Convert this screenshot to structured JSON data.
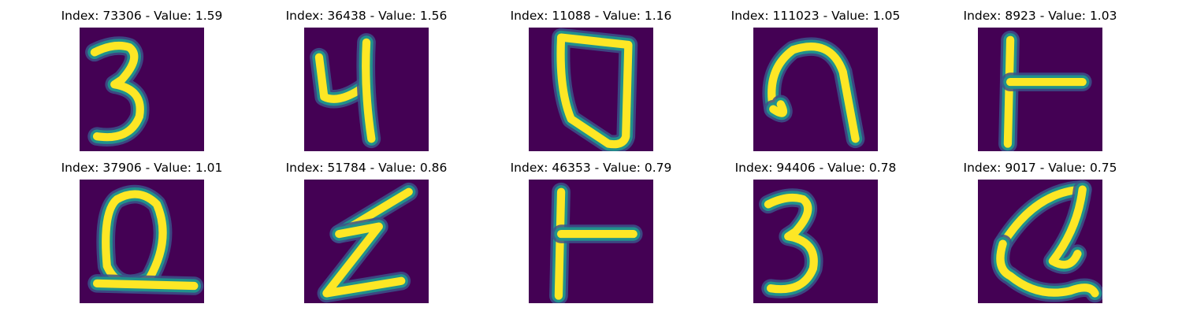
{
  "colors": {
    "background": "#440154",
    "mid": "#21918c",
    "edge": "#3b528b",
    "stroke": "#fde725"
  },
  "samples": [
    {
      "title": "Index: 73306 - Value: 1.59",
      "glyph": "digit-three-icon"
    },
    {
      "title": "Index: 36438 - Value: 1.56",
      "glyph": "letter-y-icon"
    },
    {
      "title": "Index: 11088 - Value: 1.16",
      "glyph": "shield-shape-icon"
    },
    {
      "title": "Index: 111023 - Value: 1.05",
      "glyph": "letter-n-icon"
    },
    {
      "title": "Index: 8923 - Value: 1.03",
      "glyph": "letter-t-icon"
    },
    {
      "title": "Index: 37906 - Value: 1.01",
      "glyph": "letter-q-icon"
    },
    {
      "title": "Index: 51784 - Value: 0.86",
      "glyph": "letter-z-icon"
    },
    {
      "title": "Index: 46353 - Value: 0.79",
      "glyph": "letter-t-icon"
    },
    {
      "title": "Index: 94406 - Value: 0.78",
      "glyph": "digit-three-icon"
    },
    {
      "title": "Index: 9017 - Value: 0.75",
      "glyph": "letter-a-icon"
    }
  ]
}
